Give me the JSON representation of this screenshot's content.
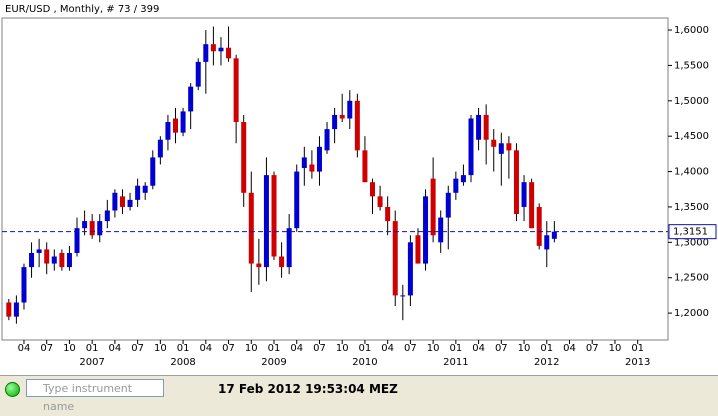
{
  "chart_data": {
    "type": "candlestick",
    "title": "EUR/USD , Monthly, # 73 / 399",
    "up_color": "#0000d0",
    "down_color": "#d00000",
    "price_line_color": "#1010b0",
    "xlim": [
      -0.9,
      87
    ],
    "ylim": [
      1.162,
      1.617
    ],
    "yticks": [
      {
        "value": 1.2,
        "label": "1,2000"
      },
      {
        "value": 1.25,
        "label": "1,2500"
      },
      {
        "value": 1.3,
        "label": "1,3000"
      },
      {
        "value": 1.35,
        "label": "1,3500"
      },
      {
        "value": 1.4,
        "label": "1,4000"
      },
      {
        "value": 1.45,
        "label": "1,4500"
      },
      {
        "value": 1.5,
        "label": "1,5000"
      },
      {
        "value": 1.55,
        "label": "1,5500"
      },
      {
        "value": 1.6,
        "label": "1,6000"
      }
    ],
    "xticks": [
      {
        "value": 2,
        "label": "04"
      },
      {
        "value": 5,
        "label": "07"
      },
      {
        "value": 8,
        "label": "10"
      },
      {
        "value": 11,
        "label": "01"
      },
      {
        "value": 14,
        "label": "04"
      },
      {
        "value": 17,
        "label": "07"
      },
      {
        "value": 20,
        "label": "10"
      },
      {
        "value": 23,
        "label": "01"
      },
      {
        "value": 26,
        "label": "04"
      },
      {
        "value": 29,
        "label": "07"
      },
      {
        "value": 32,
        "label": "10"
      },
      {
        "value": 35,
        "label": "01"
      },
      {
        "value": 38,
        "label": "04"
      },
      {
        "value": 41,
        "label": "07"
      },
      {
        "value": 44,
        "label": "10"
      },
      {
        "value": 47,
        "label": "01"
      },
      {
        "value": 50,
        "label": "04"
      },
      {
        "value": 53,
        "label": "07"
      },
      {
        "value": 56,
        "label": "10"
      },
      {
        "value": 59,
        "label": "01"
      },
      {
        "value": 62,
        "label": "04"
      },
      {
        "value": 65,
        "label": "07"
      },
      {
        "value": 68,
        "label": "10"
      },
      {
        "value": 71,
        "label": "01"
      },
      {
        "value": 74,
        "label": "04"
      },
      {
        "value": 77,
        "label": "07"
      },
      {
        "value": 80,
        "label": "10"
      },
      {
        "value": 83,
        "label": "01"
      }
    ],
    "year_labels": [
      {
        "value": 11,
        "label": "2007"
      },
      {
        "value": 23,
        "label": "2008"
      },
      {
        "value": 35,
        "label": "2009"
      },
      {
        "value": 47,
        "label": "2010"
      },
      {
        "value": 59,
        "label": "2011"
      },
      {
        "value": 71,
        "label": "2012"
      },
      {
        "value": 83,
        "label": "2013"
      }
    ],
    "last_price": {
      "value": 1.3151,
      "label": "1,3151"
    },
    "open": [
      1.215,
      1.195,
      1.215,
      1.265,
      1.285,
      1.29,
      1.27,
      1.285,
      1.265,
      1.285,
      1.32,
      1.33,
      1.31,
      1.33,
      1.345,
      1.365,
      1.35,
      1.36,
      1.37,
      1.38,
      1.42,
      1.445,
      1.475,
      1.455,
      1.485,
      1.52,
      1.555,
      1.58,
      1.57,
      1.575,
      1.56,
      1.47,
      1.37,
      1.27,
      1.265,
      1.395,
      1.28,
      1.265,
      1.32,
      1.405,
      1.41,
      1.4,
      1.43,
      1.46,
      1.48,
      1.475,
      1.5,
      1.43,
      1.385,
      1.365,
      1.35,
      1.33,
      1.225,
      1.225,
      1.31,
      1.27,
      1.39,
      1.3,
      1.335,
      1.37,
      1.385,
      1.395,
      1.445,
      1.48,
      1.445,
      1.425,
      1.44,
      1.43,
      1.35,
      1.385,
      1.35,
      1.29,
      1.305
    ],
    "high": [
      1.22,
      1.225,
      1.27,
      1.3,
      1.305,
      1.3,
      1.29,
      1.29,
      1.295,
      1.335,
      1.345,
      1.34,
      1.34,
      1.36,
      1.375,
      1.375,
      1.37,
      1.39,
      1.385,
      1.43,
      1.45,
      1.48,
      1.49,
      1.49,
      1.525,
      1.56,
      1.6,
      1.605,
      1.59,
      1.605,
      1.565,
      1.48,
      1.4,
      1.305,
      1.42,
      1.4,
      1.3,
      1.34,
      1.41,
      1.435,
      1.43,
      1.45,
      1.47,
      1.49,
      1.51,
      1.515,
      1.51,
      1.45,
      1.39,
      1.38,
      1.365,
      1.345,
      1.24,
      1.31,
      1.32,
      1.375,
      1.42,
      1.345,
      1.38,
      1.4,
      1.41,
      1.48,
      1.49,
      1.495,
      1.46,
      1.455,
      1.45,
      1.44,
      1.395,
      1.39,
      1.355,
      1.33,
      1.33
    ],
    "low": [
      1.19,
      1.185,
      1.205,
      1.25,
      1.265,
      1.255,
      1.26,
      1.26,
      1.26,
      1.28,
      1.31,
      1.305,
      1.3,
      1.32,
      1.335,
      1.34,
      1.345,
      1.35,
      1.36,
      1.375,
      1.41,
      1.43,
      1.44,
      1.45,
      1.46,
      1.515,
      1.51,
      1.55,
      1.55,
      1.555,
      1.44,
      1.35,
      1.23,
      1.24,
      1.245,
      1.275,
      1.25,
      1.255,
      1.315,
      1.38,
      1.39,
      1.38,
      1.425,
      1.44,
      1.47,
      1.46,
      1.42,
      1.385,
      1.34,
      1.345,
      1.31,
      1.21,
      1.19,
      1.21,
      1.27,
      1.26,
      1.3,
      1.285,
      1.29,
      1.36,
      1.38,
      1.385,
      1.43,
      1.41,
      1.4,
      1.38,
      1.39,
      1.33,
      1.33,
      1.32,
      1.29,
      1.265,
      1.3
    ],
    "close": [
      1.195,
      1.215,
      1.265,
      1.285,
      1.29,
      1.27,
      1.28,
      1.265,
      1.285,
      1.32,
      1.33,
      1.31,
      1.33,
      1.345,
      1.37,
      1.35,
      1.36,
      1.38,
      1.38,
      1.42,
      1.445,
      1.47,
      1.455,
      1.485,
      1.52,
      1.555,
      1.58,
      1.57,
      1.575,
      1.56,
      1.47,
      1.37,
      1.27,
      1.265,
      1.395,
      1.28,
      1.265,
      1.32,
      1.4,
      1.42,
      1.4,
      1.435,
      1.46,
      1.48,
      1.475,
      1.5,
      1.43,
      1.385,
      1.365,
      1.35,
      1.33,
      1.225,
      1.225,
      1.3,
      1.27,
      1.365,
      1.31,
      1.335,
      1.37,
      1.39,
      1.395,
      1.475,
      1.48,
      1.445,
      1.435,
      1.44,
      1.43,
      1.34,
      1.385,
      1.32,
      1.295,
      1.31,
      1.315
    ]
  },
  "status_bar": {
    "search_placeholder": "Type instrument name",
    "timestamp": "17 Feb 2012 19:53:04 MEZ"
  }
}
